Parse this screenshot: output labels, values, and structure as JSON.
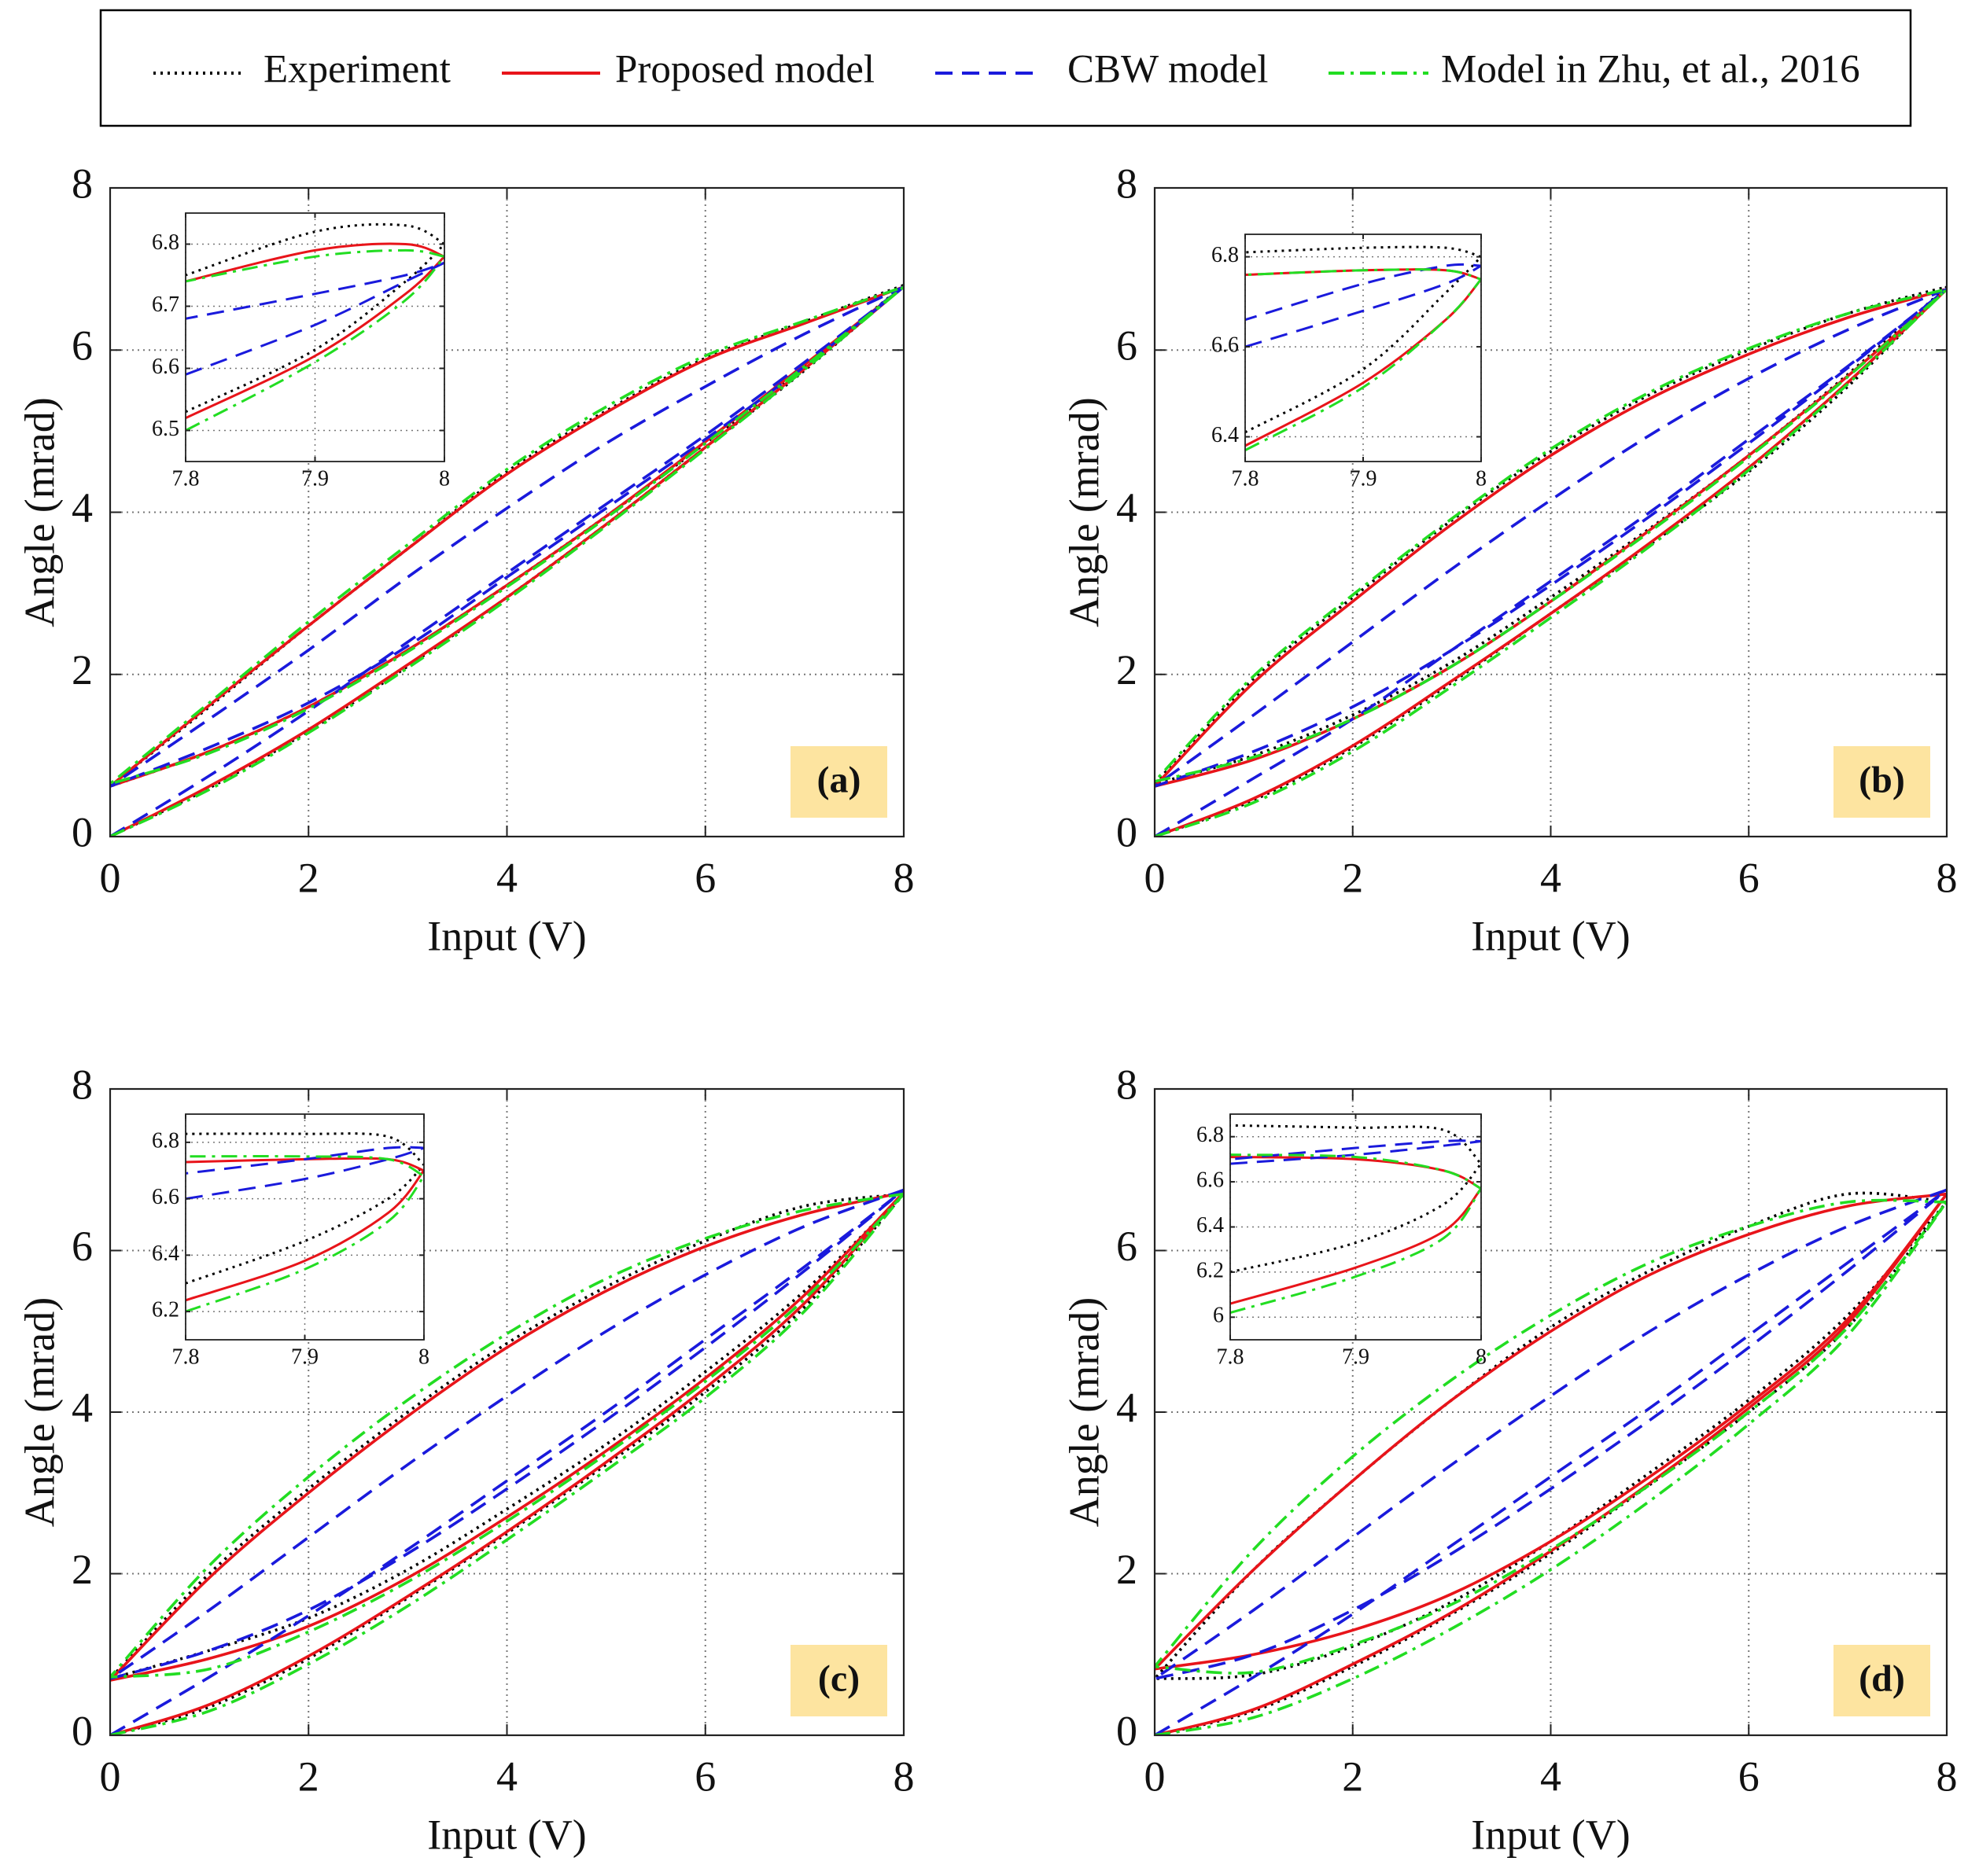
{
  "chart_data": [
    {
      "type": "line",
      "label": "(a)",
      "x_label": "Input (V)",
      "y_label": "Angle (mrad)",
      "xlim": [
        0,
        8
      ],
      "ylim": [
        0,
        8
      ],
      "xticks": [
        0,
        2,
        4,
        6,
        8
      ],
      "yticks": [
        0,
        2,
        4,
        6,
        8
      ],
      "grid": true,
      "x": [
        0,
        1,
        2,
        3,
        4,
        5,
        6,
        7,
        8,
        7,
        6,
        5,
        4,
        3,
        2,
        1,
        0,
        1,
        2,
        3,
        4,
        5,
        6,
        7,
        8
      ],
      "series": [
        {
          "name": "Experiment",
          "color": "#000000",
          "dash": "dotted",
          "values": [
            0,
            0.6,
            1.3,
            2.1,
            2.95,
            3.85,
            4.8,
            5.75,
            6.8,
            6.35,
            5.9,
            5.25,
            4.5,
            3.55,
            2.6,
            1.6,
            0.62,
            1.05,
            1.6,
            2.3,
            3.1,
            3.95,
            4.85,
            5.8,
            6.8
          ]
        },
        {
          "name": "Proposed model",
          "color": "#e8141a",
          "dash": "solid",
          "values": [
            0,
            0.62,
            1.32,
            2.12,
            2.95,
            3.85,
            4.8,
            5.77,
            6.78,
            6.33,
            5.88,
            5.23,
            4.47,
            3.55,
            2.6,
            1.62,
            0.62,
            1.05,
            1.6,
            2.3,
            3.1,
            3.95,
            4.87,
            5.82,
            6.78
          ]
        },
        {
          "name": "CBW model",
          "color": "#1a1adc",
          "dash": "dashed",
          "values": [
            0,
            0.75,
            1.55,
            2.4,
            3.25,
            4.1,
            4.95,
            5.85,
            6.78,
            6.2,
            5.55,
            4.85,
            4.05,
            3.2,
            2.3,
            1.45,
            0.62,
            1.1,
            1.65,
            2.35,
            3.2,
            4.05,
            4.9,
            5.8,
            6.78
          ]
        },
        {
          "name": "Model in Zhu, et al., 2016",
          "color": "#22dd22",
          "dash": "dashdot",
          "values": [
            0,
            0.58,
            1.28,
            2.08,
            2.92,
            3.83,
            4.78,
            5.76,
            6.78,
            6.36,
            5.93,
            5.3,
            4.53,
            3.6,
            2.65,
            1.65,
            0.65,
            1.03,
            1.58,
            2.28,
            3.08,
            3.93,
            4.85,
            5.8,
            6.78
          ]
        }
      ],
      "inset": {
        "xlim": [
          7.8,
          8
        ],
        "ylim": [
          6.45,
          6.85
        ],
        "xticks": [
          7.8,
          7.9,
          8
        ],
        "yticks": [
          6.5,
          6.6,
          6.7,
          6.8
        ],
        "grid": true,
        "x": [
          7.8,
          7.9,
          7.97,
          8,
          7.97,
          7.9,
          7.8
        ],
        "series": [
          {
            "color": "#000000",
            "dash": "dotted",
            "values": [
              6.53,
              6.63,
              6.74,
              6.8,
              6.83,
              6.82,
              6.75
            ]
          },
          {
            "color": "#e8141a",
            "dash": "solid",
            "values": [
              6.52,
              6.62,
              6.72,
              6.78,
              6.8,
              6.79,
              6.74
            ]
          },
          {
            "color": "#1a1adc",
            "dash": "dashed",
            "values": [
              6.59,
              6.67,
              6.74,
              6.77,
              6.75,
              6.72,
              6.68
            ]
          },
          {
            "color": "#22dd22",
            "dash": "dashdot",
            "values": [
              6.5,
              6.61,
              6.71,
              6.78,
              6.79,
              6.78,
              6.74
            ]
          }
        ]
      }
    },
    {
      "type": "line",
      "label": "(b)",
      "x_label": "Input (V)",
      "y_label": "Angle (mrad)",
      "xlim": [
        0,
        8
      ],
      "ylim": [
        0,
        8
      ],
      "xticks": [
        0,
        2,
        4,
        6,
        8
      ],
      "yticks": [
        0,
        2,
        4,
        6,
        8
      ],
      "grid": true,
      "x": [
        0,
        1,
        2,
        3,
        4,
        5,
        6,
        7,
        8,
        7,
        6,
        5,
        4,
        3,
        2,
        1,
        0,
        1,
        2,
        3,
        4,
        5,
        6,
        7,
        8
      ],
      "series": [
        {
          "color": "#000000",
          "dash": "dotted",
          "values": [
            0,
            0.45,
            1.1,
            1.9,
            2.75,
            3.6,
            4.5,
            5.55,
            6.78,
            6.45,
            6.0,
            5.45,
            4.75,
            3.9,
            2.95,
            1.95,
            0.65,
            1.0,
            1.5,
            2.15,
            2.95,
            3.8,
            4.7,
            5.7,
            6.78
          ]
        },
        {
          "color": "#e8141a",
          "dash": "solid",
          "values": [
            0,
            0.47,
            1.12,
            1.92,
            2.75,
            3.62,
            4.55,
            5.6,
            6.75,
            6.4,
            5.95,
            5.4,
            4.7,
            3.85,
            2.9,
            1.9,
            0.62,
            0.95,
            1.45,
            2.1,
            2.9,
            3.78,
            4.7,
            5.68,
            6.75
          ]
        },
        {
          "color": "#1a1adc",
          "dash": "dashed",
          "values": [
            0,
            0.72,
            1.45,
            2.3,
            3.15,
            4.0,
            4.9,
            5.8,
            6.75,
            6.25,
            5.65,
            4.95,
            4.15,
            3.3,
            2.4,
            1.5,
            0.62,
            1.05,
            1.6,
            2.3,
            3.1,
            3.95,
            4.85,
            5.78,
            6.75
          ]
        },
        {
          "color": "#22dd22",
          "dash": "dashdot",
          "values": [
            0,
            0.42,
            1.05,
            1.85,
            2.7,
            3.58,
            4.52,
            5.58,
            6.75,
            6.45,
            6.02,
            5.48,
            4.78,
            3.92,
            2.98,
            1.98,
            0.68,
            0.98,
            1.45,
            2.1,
            2.9,
            3.76,
            4.68,
            5.67,
            6.75
          ]
        }
      ],
      "inset": {
        "xlim": [
          7.8,
          8
        ],
        "ylim": [
          6.345,
          6.85
        ],
        "xticks": [
          7.8,
          7.9,
          8
        ],
        "yticks": [
          6.4,
          6.6,
          6.8
        ],
        "grid": true,
        "x": [
          7.8,
          7.9,
          7.97,
          8,
          7.97,
          7.9,
          7.8
        ],
        "series": [
          {
            "color": "#000000",
            "dash": "dotted",
            "values": [
              6.41,
              6.55,
              6.72,
              6.8,
              6.82,
              6.82,
              6.81
            ]
          },
          {
            "color": "#e8141a",
            "dash": "solid",
            "values": [
              6.38,
              6.52,
              6.66,
              6.75,
              6.77,
              6.77,
              6.76
            ]
          },
          {
            "color": "#1a1adc",
            "dash": "dashed",
            "values": [
              6.6,
              6.68,
              6.74,
              6.78,
              6.78,
              6.74,
              6.66
            ]
          },
          {
            "color": "#22dd22",
            "dash": "dashdot",
            "values": [
              6.37,
              6.51,
              6.66,
              6.75,
              6.77,
              6.77,
              6.76
            ]
          }
        ]
      }
    },
    {
      "type": "line",
      "label": "(c)",
      "x_label": "Input (V)",
      "y_label": "Angle (mrad)",
      "xlim": [
        0,
        8
      ],
      "ylim": [
        0,
        8
      ],
      "xticks": [
        0,
        2,
        4,
        6,
        8
      ],
      "yticks": [
        0,
        2,
        4,
        6,
        8
      ],
      "grid": true,
      "x": [
        0,
        1,
        2,
        3,
        4,
        5,
        6,
        7,
        8,
        7,
        6,
        5,
        4,
        3,
        2,
        1,
        0,
        1,
        2,
        3,
        4,
        5,
        6,
        7,
        8
      ],
      "series": [
        {
          "color": "#000000",
          "dash": "dotted",
          "values": [
            0,
            0.35,
            0.95,
            1.7,
            2.5,
            3.35,
            4.25,
            5.3,
            6.7,
            6.55,
            6.12,
            5.55,
            4.85,
            4.0,
            3.05,
            2.0,
            0.7,
            1.05,
            1.45,
            2.05,
            2.8,
            3.6,
            4.5,
            5.5,
            6.7
          ]
        },
        {
          "color": "#e8141a",
          "dash": "solid",
          "values": [
            0,
            0.38,
            0.98,
            1.72,
            2.52,
            3.38,
            4.3,
            5.35,
            6.72,
            6.45,
            6.05,
            5.5,
            4.8,
            3.95,
            3.0,
            1.95,
            0.68,
            0.95,
            1.35,
            1.95,
            2.7,
            3.52,
            4.42,
            5.45,
            6.72
          ]
        },
        {
          "color": "#1a1adc",
          "dash": "dashed",
          "values": [
            0,
            0.72,
            1.48,
            2.3,
            3.15,
            4.0,
            4.9,
            5.8,
            6.75,
            6.3,
            5.7,
            5.0,
            4.2,
            3.35,
            2.45,
            1.55,
            0.7,
            1.05,
            1.55,
            2.25,
            3.05,
            3.9,
            4.8,
            5.75,
            6.75
          ]
        },
        {
          "color": "#22dd22",
          "dash": "dashdot",
          "values": [
            0,
            0.3,
            0.88,
            1.6,
            2.42,
            3.28,
            4.18,
            5.25,
            6.7,
            6.5,
            6.15,
            5.65,
            4.97,
            4.15,
            3.2,
            2.1,
            0.72,
            0.82,
            1.28,
            1.9,
            2.65,
            3.48,
            4.38,
            5.4,
            6.7
          ]
        }
      ],
      "inset": {
        "xlim": [
          7.8,
          8
        ],
        "ylim": [
          6.1,
          6.9
        ],
        "xticks": [
          7.8,
          7.9,
          8
        ],
        "yticks": [
          6.2,
          6.4,
          6.6,
          6.8
        ],
        "grid": true,
        "x": [
          7.8,
          7.9,
          7.97,
          8,
          7.97,
          7.9,
          7.8
        ],
        "series": [
          {
            "color": "#000000",
            "dash": "dotted",
            "values": [
              6.3,
              6.45,
              6.6,
              6.72,
              6.82,
              6.83,
              6.83
            ]
          },
          {
            "color": "#e8141a",
            "dash": "solid",
            "values": [
              6.24,
              6.38,
              6.55,
              6.7,
              6.74,
              6.74,
              6.73
            ]
          },
          {
            "color": "#1a1adc",
            "dash": "dashed",
            "values": [
              6.6,
              6.67,
              6.74,
              6.78,
              6.78,
              6.74,
              6.69
            ]
          },
          {
            "color": "#22dd22",
            "dash": "dashdot",
            "values": [
              6.2,
              6.35,
              6.52,
              6.68,
              6.74,
              6.75,
              6.75
            ]
          }
        ]
      }
    },
    {
      "type": "line",
      "label": "(d)",
      "x_label": "Input (V)",
      "y_label": "Angle (mrad)",
      "xlim": [
        0,
        8
      ],
      "ylim": [
        0,
        8
      ],
      "xticks": [
        0,
        2,
        4,
        6,
        8
      ],
      "yticks": [
        0,
        2,
        4,
        6,
        8
      ],
      "grid": true,
      "x": [
        0,
        1,
        2,
        3,
        4,
        5,
        6,
        7,
        8,
        7,
        6,
        5,
        4,
        3,
        2,
        1,
        0,
        1,
        2,
        3,
        4,
        5,
        6,
        7,
        8
      ],
      "series": [
        {
          "color": "#000000",
          "dash": "dotted",
          "values": [
            0,
            0.3,
            0.85,
            1.5,
            2.25,
            3.1,
            4.0,
            5.05,
            6.6,
            6.7,
            6.3,
            5.75,
            5.05,
            4.15,
            3.15,
            2.05,
            0.7,
            0.75,
            1.1,
            1.65,
            2.4,
            3.25,
            4.15,
            5.2,
            6.6
          ]
        },
        {
          "color": "#e8141a",
          "dash": "solid",
          "values": [
            0,
            0.32,
            0.88,
            1.52,
            2.28,
            3.12,
            4.05,
            5.1,
            6.7,
            6.55,
            6.2,
            5.7,
            5.0,
            4.15,
            3.15,
            2.05,
            0.82,
            1.0,
            1.3,
            1.75,
            2.4,
            3.2,
            4.1,
            5.15,
            6.7
          ]
        },
        {
          "color": "#1a1adc",
          "dash": "dashed",
          "values": [
            0,
            0.72,
            1.5,
            2.35,
            3.2,
            4.05,
            4.95,
            5.85,
            6.75,
            6.3,
            5.7,
            5.0,
            4.2,
            3.35,
            2.45,
            1.55,
            0.7,
            1.0,
            1.55,
            2.25,
            3.05,
            3.9,
            4.8,
            5.75,
            6.75
          ]
        },
        {
          "color": "#22dd22",
          "dash": "dashdot",
          "values": [
            0,
            0.22,
            0.7,
            1.32,
            2.05,
            2.9,
            3.85,
            4.95,
            6.6,
            6.6,
            6.3,
            5.85,
            5.2,
            4.4,
            3.45,
            2.3,
            0.85,
            0.78,
            1.12,
            1.62,
            2.3,
            3.1,
            4.0,
            5.05,
            6.6
          ]
        }
      ],
      "inset": {
        "xlim": [
          7.8,
          8
        ],
        "ylim": [
          5.9,
          6.9
        ],
        "xticks": [
          7.8,
          7.9,
          8
        ],
        "yticks": [
          6,
          6.2,
          6.4,
          6.6,
          6.8
        ],
        "grid": true,
        "x": [
          7.8,
          7.9,
          7.97,
          8,
          7.97,
          7.9,
          7.8
        ],
        "series": [
          {
            "color": "#000000",
            "dash": "dotted",
            "values": [
              6.2,
              6.33,
              6.5,
              6.68,
              6.83,
              6.84,
              6.85
            ]
          },
          {
            "color": "#e8141a",
            "dash": "solid",
            "values": [
              6.06,
              6.22,
              6.38,
              6.57,
              6.65,
              6.7,
              6.71
            ]
          },
          {
            "color": "#1a1adc",
            "dash": "dashed",
            "values": [
              6.68,
              6.72,
              6.76,
              6.78,
              6.78,
              6.75,
              6.7
            ]
          },
          {
            "color": "#22dd22",
            "dash": "dashdot",
            "values": [
              6.02,
              6.18,
              6.35,
              6.57,
              6.65,
              6.71,
              6.72
            ]
          }
        ]
      }
    }
  ]
}
